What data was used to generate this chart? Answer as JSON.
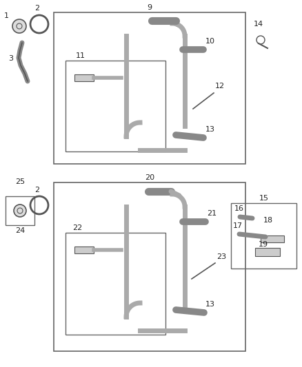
{
  "bg_color": "#ffffff",
  "line_color": "#555555",
  "box_color": "#666666",
  "tube_color": "#aaaaaa",
  "part_color": "#888888",
  "labels": {
    "lbl_9": "9",
    "lbl_11": "11",
    "lbl_1": "1",
    "lbl_2a": "2",
    "lbl_3": "3",
    "lbl_10": "10",
    "lbl_12": "12",
    "lbl_13a": "13",
    "lbl_14": "14",
    "lbl_20": "20",
    "lbl_22": "22",
    "lbl_2b": "2",
    "lbl_24": "24",
    "lbl_25": "25",
    "lbl_21": "21",
    "lbl_23": "23",
    "lbl_13b": "13",
    "lbl_15": "15",
    "lbl_16": "16",
    "lbl_17": "17",
    "lbl_18": "18",
    "lbl_19": "19"
  },
  "font_size": 8
}
